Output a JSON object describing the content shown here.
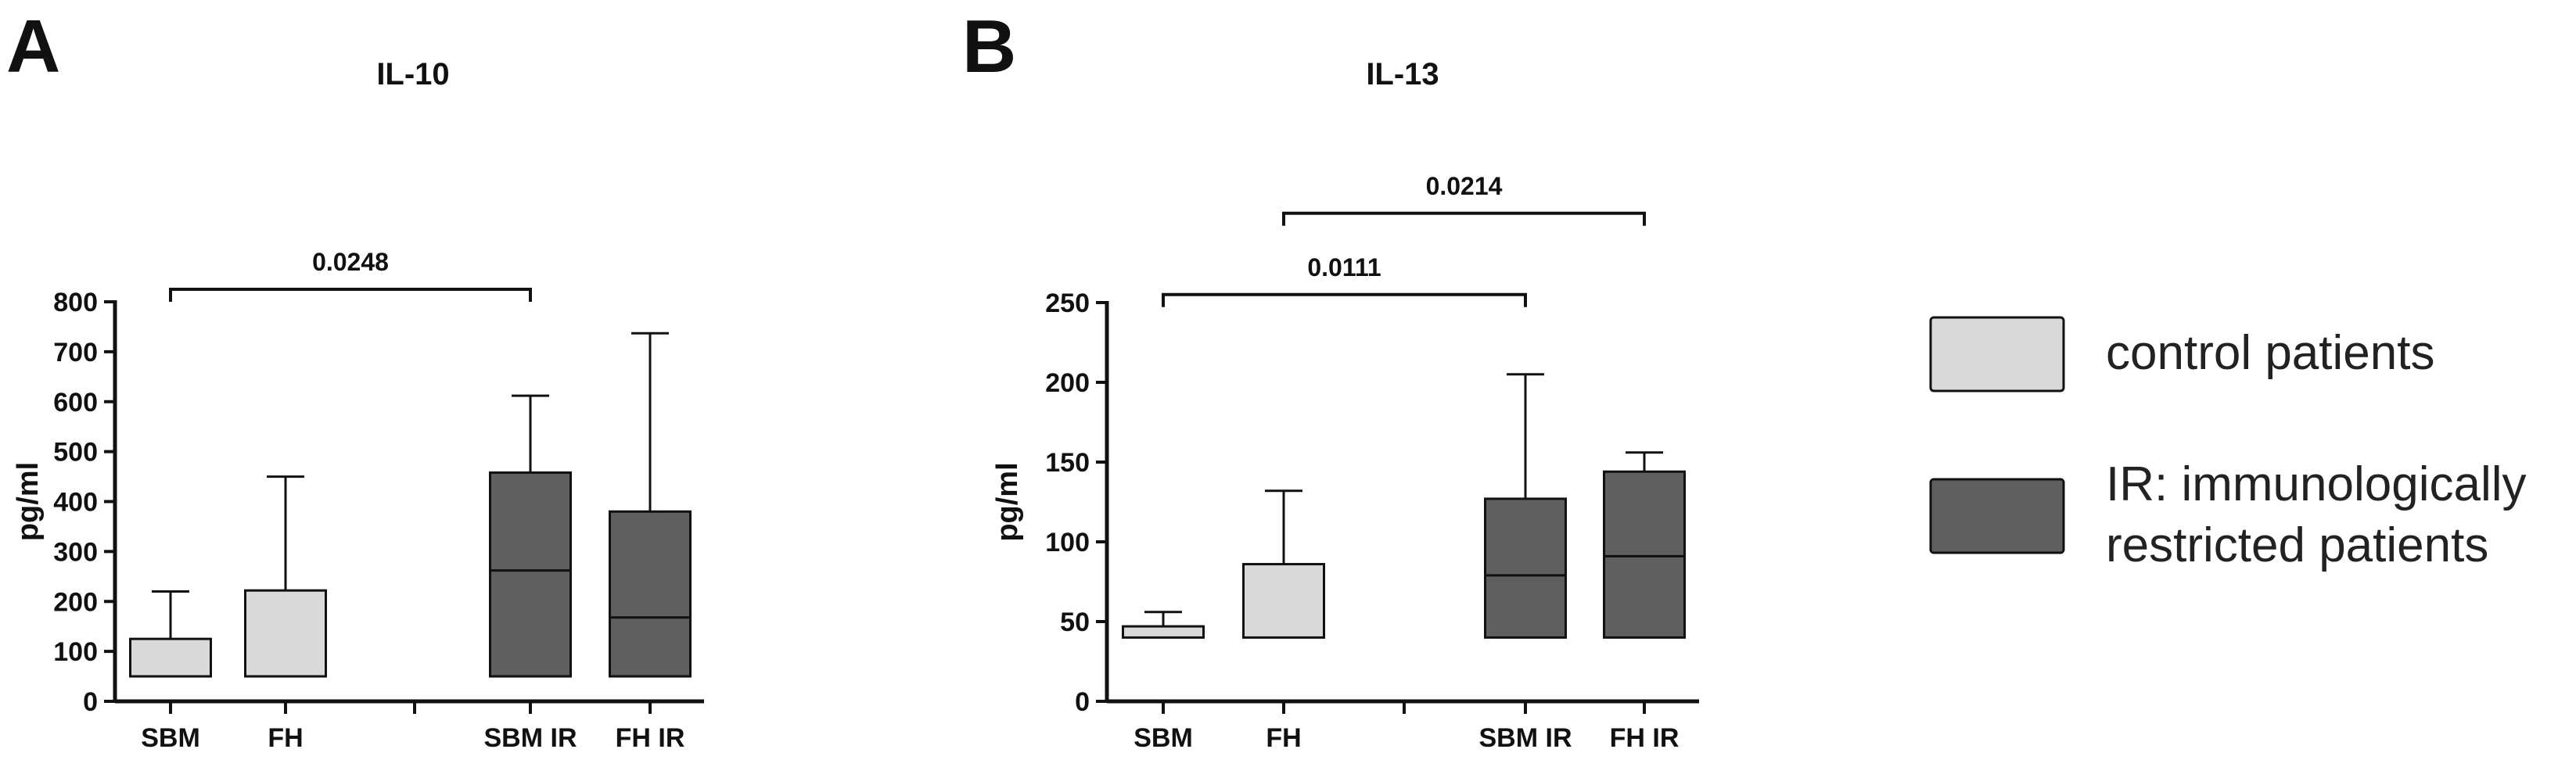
{
  "panels": [
    {
      "letter": "A"
    },
    {
      "letter": "B"
    }
  ],
  "colors": {
    "control": "#d9d9d9",
    "ir": "#5f5f5f",
    "line": "#111111"
  },
  "chart_data": [
    {
      "type": "box",
      "panel": "A",
      "title": "IL-10",
      "ylabel": "pg/ml",
      "xlabel": "",
      "ylim": [
        0,
        800
      ],
      "yticks": [
        0,
        100,
        200,
        300,
        400,
        500,
        600,
        700,
        800
      ],
      "ytick_labels": [
        "0",
        "100",
        "200",
        "300",
        "400",
        "500",
        "600",
        "700",
        "800"
      ],
      "categories": [
        "SBM",
        "FH",
        "SBM IR",
        "FH IR"
      ],
      "groups": [
        "control",
        "control",
        "ir",
        "ir"
      ],
      "boxes": [
        {
          "min": 50,
          "q1": 50,
          "median": 50,
          "q3": 125,
          "max": 220
        },
        {
          "min": 50,
          "q1": 50,
          "median": 50,
          "q3": 222,
          "max": 450
        },
        {
          "min": 50,
          "q1": 50,
          "median": 262,
          "q3": 458,
          "max": 612
        },
        {
          "min": 50,
          "q1": 50,
          "median": 168,
          "q3": 380,
          "max": 737
        }
      ],
      "comparisons": [
        {
          "from": 0,
          "to": 2,
          "label": "0.0248",
          "y": 825
        }
      ]
    },
    {
      "type": "box",
      "panel": "B",
      "title": "IL-13",
      "ylabel": "pg/ml",
      "xlabel": "",
      "ylim": [
        0,
        250
      ],
      "yticks": [
        0,
        50,
        100,
        150,
        200,
        250
      ],
      "ytick_labels": [
        "0",
        "50",
        "100",
        "150",
        "200",
        "250"
      ],
      "categories": [
        "SBM",
        "FH",
        "SBM IR",
        "FH IR"
      ],
      "groups": [
        "control",
        "control",
        "ir",
        "ir"
      ],
      "boxes": [
        {
          "min": 40,
          "q1": 40,
          "median": 40,
          "q3": 47,
          "max": 56
        },
        {
          "min": 40,
          "q1": 40,
          "median": 40,
          "q3": 86,
          "max": 132
        },
        {
          "min": 40,
          "q1": 40,
          "median": 79,
          "q3": 127,
          "max": 205
        },
        {
          "min": 40,
          "q1": 40,
          "median": 91,
          "q3": 144,
          "max": 156
        }
      ],
      "comparisons": [
        {
          "from": 0,
          "to": 2,
          "label": "0.0111",
          "y": 255
        },
        {
          "from": 1,
          "to": 3,
          "label": "0.0214",
          "y": 306
        }
      ]
    }
  ],
  "legend": {
    "items": [
      {
        "group": "control",
        "lines": [
          "control patients"
        ]
      },
      {
        "group": "ir",
        "lines": [
          "IR: immunologically",
          "restricted patients"
        ]
      }
    ]
  }
}
